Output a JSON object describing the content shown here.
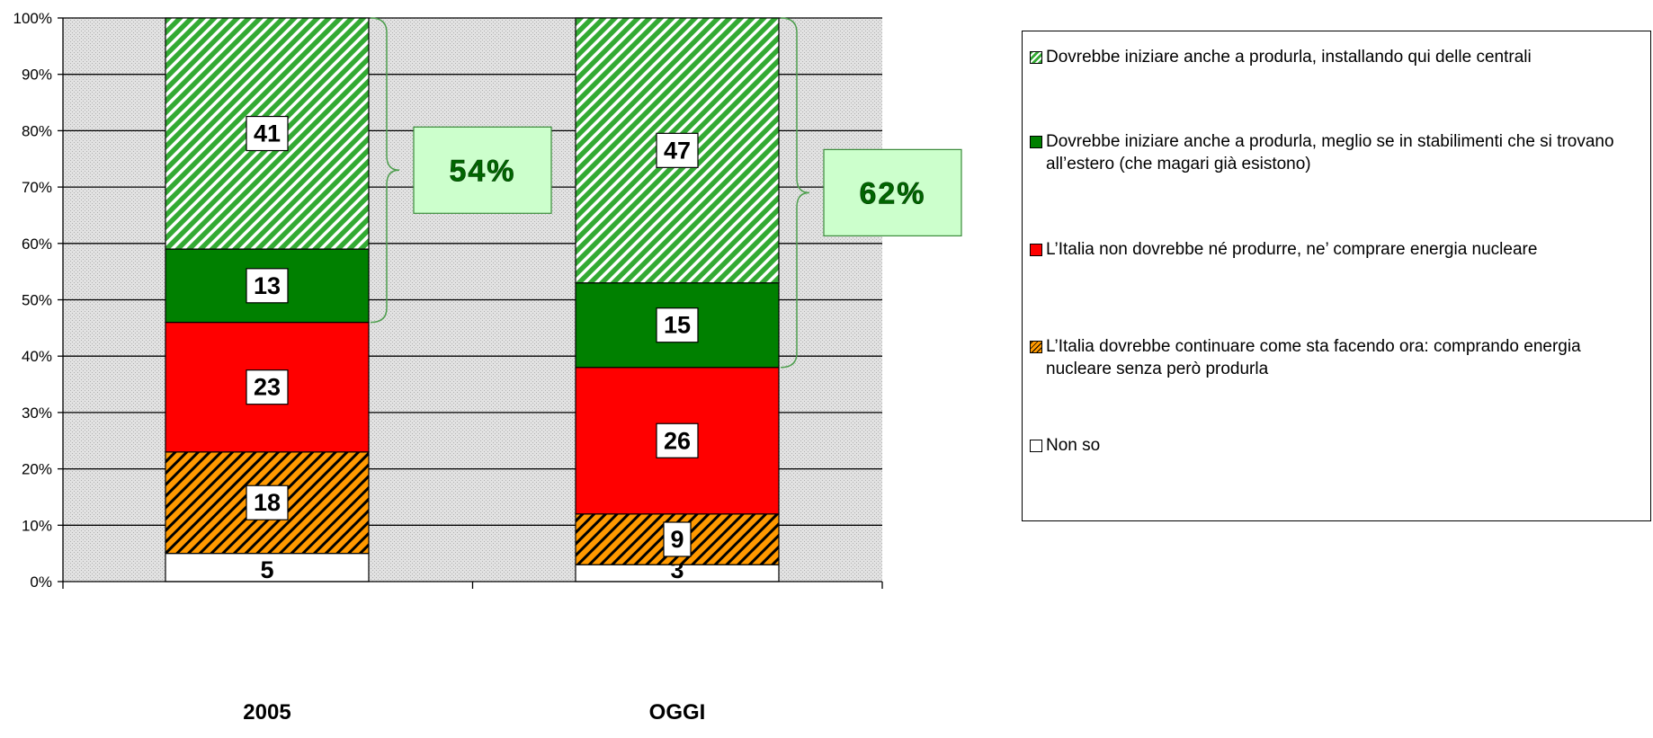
{
  "chart_data": {
    "type": "bar",
    "stacked": true,
    "categories": [
      "2005",
      "OGGI"
    ],
    "y_ticks": [
      "0%",
      "10%",
      "20%",
      "30%",
      "40%",
      "50%",
      "60%",
      "70%",
      "80%",
      "90%",
      "100%"
    ],
    "ylim": [
      0,
      100
    ],
    "grid": true,
    "legend_position": "right",
    "series": [
      {
        "name": "Non so",
        "values": [
          5,
          3
        ],
        "color": "#ffffff",
        "pattern": "solid"
      },
      {
        "name": "L’Italia dovrebbe continuare come sta facendo ora: comprando energia nucleare senza però produrla",
        "values": [
          18,
          9
        ],
        "color": "#ff9900",
        "pattern": "hatch"
      },
      {
        "name": "L’Italia non dovrebbe né produrre, ne’ comprare energia nucleare",
        "values": [
          23,
          26
        ],
        "color": "#ff0000",
        "pattern": "solid"
      },
      {
        "name": "Dovrebbe iniziare anche a produrla, meglio se in stabilimenti che si trovano all’estero (che magari già esistono)",
        "values": [
          13,
          15
        ],
        "color": "#008000",
        "pattern": "solid"
      },
      {
        "name": "Dovrebbe iniziare anche a produrla, installando qui delle centrali",
        "values": [
          41,
          47
        ],
        "color": "#33aa33",
        "pattern": "hatch"
      }
    ],
    "callouts": [
      {
        "category": "2005",
        "text": "54%",
        "range": [
          46,
          100
        ]
      },
      {
        "category": "OGGI",
        "text": "62%",
        "range": [
          38,
          100
        ]
      }
    ],
    "callout_fill": "#ccffcc",
    "callout_text_color": "#006600"
  },
  "legend": {
    "items": [
      {
        "label": "Dovrebbe iniziare anche a produrla, installando qui delle centrali",
        "swatch": "hatch-green"
      },
      {
        "label": "Dovrebbe iniziare anche a produrla, meglio se in stabilimenti che si trovano all’estero (che magari già esistono)",
        "swatch": "solid-green"
      },
      {
        "label": "L’Italia non dovrebbe né produrre, ne’ comprare energia nucleare",
        "swatch": "solid-red"
      },
      {
        "label": "L’Italia dovrebbe continuare come sta facendo ora: comprando energia nucleare senza però produrla",
        "swatch": "hatch-orange"
      },
      {
        "label": "Non so",
        "swatch": "solid-white"
      }
    ]
  }
}
